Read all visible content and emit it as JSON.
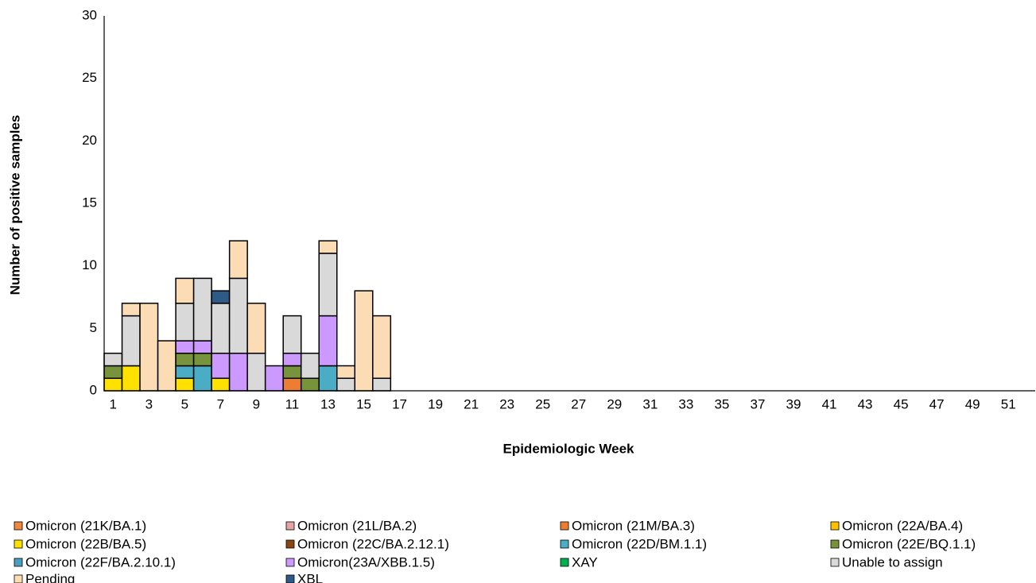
{
  "chart_data": {
    "type": "stacked-bar",
    "x_label": "Epidemiologic Week",
    "y_label": "Number of positive samples",
    "categories": [
      1,
      null,
      3,
      null,
      5,
      null,
      7,
      null,
      9,
      null,
      11,
      null,
      13,
      null,
      15,
      null,
      17,
      null,
      19,
      null,
      21,
      null,
      23,
      null,
      25,
      null,
      27,
      null,
      29,
      null,
      31,
      null,
      33,
      null,
      35,
      null,
      37,
      null,
      39,
      null,
      41,
      null,
      43,
      null,
      45,
      null,
      47,
      null,
      49,
      null,
      51,
      null
    ],
    "ylim": [
      0,
      30
    ],
    "yticks": [
      0,
      5,
      10,
      15,
      20,
      25,
      30
    ],
    "grid": false,
    "series": [
      {
        "name": "Omicron (21K/BA.1)",
        "color": "#f0883e",
        "values": [
          0,
          0,
          0,
          0,
          0,
          0,
          0,
          0,
          0,
          0,
          0,
          0,
          0,
          0,
          0,
          0,
          0,
          0,
          0,
          0,
          0,
          0,
          0,
          0,
          0,
          0,
          0,
          0,
          0,
          0,
          0,
          0,
          0,
          0,
          0,
          0,
          0,
          0,
          0,
          0,
          0,
          0,
          0,
          0,
          0,
          0,
          0,
          0,
          0,
          0,
          0,
          0
        ]
      },
      {
        "name": "Omicron (21L/BA.2)",
        "color": "#e6a3a3",
        "values": [
          0,
          0,
          0,
          0,
          0,
          0,
          0,
          0,
          0,
          0,
          0,
          0,
          0,
          0,
          0,
          0,
          0,
          0,
          0,
          0,
          0,
          0,
          0,
          0,
          0,
          0,
          0,
          0,
          0,
          0,
          0,
          0,
          0,
          0,
          0,
          0,
          0,
          0,
          0,
          0,
          0,
          0,
          0,
          0,
          0,
          0,
          0,
          0,
          0,
          0,
          0,
          0
        ]
      },
      {
        "name": "Omicron (21M/BA.3)",
        "color": "#ed7d31",
        "values": [
          0,
          0,
          0,
          0,
          0,
          0,
          0,
          0,
          0,
          0,
          1,
          0,
          0,
          0,
          0,
          0,
          0,
          0,
          0,
          0,
          0,
          0,
          0,
          0,
          0,
          0,
          0,
          0,
          0,
          0,
          0,
          0,
          0,
          0,
          0,
          0,
          0,
          0,
          0,
          0,
          0,
          0,
          0,
          0,
          0,
          0,
          0,
          0,
          0,
          0,
          0,
          0
        ]
      },
      {
        "name": "Omicron (22A/BA.4)",
        "color": "#ffc000",
        "values": [
          0,
          0,
          0,
          0,
          0,
          0,
          0,
          0,
          0,
          0,
          0,
          0,
          0,
          0,
          0,
          0,
          0,
          0,
          0,
          0,
          0,
          0,
          0,
          0,
          0,
          0,
          0,
          0,
          0,
          0,
          0,
          0,
          0,
          0,
          0,
          0,
          0,
          0,
          0,
          0,
          0,
          0,
          0,
          0,
          0,
          0,
          0,
          0,
          0,
          0,
          0,
          0
        ]
      },
      {
        "name": "Omicron (22B/BA.5)",
        "color": "#ffe100",
        "values": [
          1,
          2,
          0,
          0,
          1,
          0,
          1,
          0,
          0,
          0,
          0,
          0,
          0,
          0,
          0,
          0,
          0,
          0,
          0,
          0,
          0,
          0,
          0,
          0,
          0,
          0,
          0,
          0,
          0,
          0,
          0,
          0,
          0,
          0,
          0,
          0,
          0,
          0,
          0,
          0,
          0,
          0,
          0,
          0,
          0,
          0,
          0,
          0,
          0,
          0,
          0,
          0
        ]
      },
      {
        "name": "Omicron (22C/BA.2.12.1)",
        "color": "#8b4513",
        "values": [
          0,
          0,
          0,
          0,
          0,
          0,
          0,
          0,
          0,
          0,
          0,
          0,
          0,
          0,
          0,
          0,
          0,
          0,
          0,
          0,
          0,
          0,
          0,
          0,
          0,
          0,
          0,
          0,
          0,
          0,
          0,
          0,
          0,
          0,
          0,
          0,
          0,
          0,
          0,
          0,
          0,
          0,
          0,
          0,
          0,
          0,
          0,
          0,
          0,
          0,
          0,
          0
        ]
      },
      {
        "name": "Omicron (22D/BM.1.1)",
        "color": "#4bacc6",
        "values": [
          0,
          0,
          0,
          0,
          1,
          2,
          0,
          0,
          0,
          0,
          0,
          0,
          2,
          0,
          0,
          0,
          0,
          0,
          0,
          0,
          0,
          0,
          0,
          0,
          0,
          0,
          0,
          0,
          0,
          0,
          0,
          0,
          0,
          0,
          0,
          0,
          0,
          0,
          0,
          0,
          0,
          0,
          0,
          0,
          0,
          0,
          0,
          0,
          0,
          0,
          0,
          0
        ]
      },
      {
        "name": "Omicron (22E/BQ.1.1)",
        "color": "#77933c",
        "values": [
          1,
          0,
          0,
          0,
          1,
          1,
          0,
          0,
          0,
          0,
          1,
          1,
          0,
          0,
          0,
          0,
          0,
          0,
          0,
          0,
          0,
          0,
          0,
          0,
          0,
          0,
          0,
          0,
          0,
          0,
          0,
          0,
          0,
          0,
          0,
          0,
          0,
          0,
          0,
          0,
          0,
          0,
          0,
          0,
          0,
          0,
          0,
          0,
          0,
          0,
          0,
          0
        ]
      },
      {
        "name": "Omicron (22F/BA.2.10.1)",
        "color": "#4a9fc0",
        "values": [
          0,
          0,
          0,
          0,
          0,
          0,
          0,
          0,
          0,
          0,
          0,
          0,
          0,
          0,
          0,
          0,
          0,
          0,
          0,
          0,
          0,
          0,
          0,
          0,
          0,
          0,
          0,
          0,
          0,
          0,
          0,
          0,
          0,
          0,
          0,
          0,
          0,
          0,
          0,
          0,
          0,
          0,
          0,
          0,
          0,
          0,
          0,
          0,
          0,
          0,
          0,
          0
        ]
      },
      {
        "name": "Omicron(23A/XBB.1.5)",
        "color": "#cc99ff",
        "values": [
          0,
          0,
          0,
          0,
          1,
          1,
          2,
          3,
          0,
          2,
          1,
          0,
          4,
          0,
          0,
          0,
          0,
          0,
          0,
          0,
          0,
          0,
          0,
          0,
          0,
          0,
          0,
          0,
          0,
          0,
          0,
          0,
          0,
          0,
          0,
          0,
          0,
          0,
          0,
          0,
          0,
          0,
          0,
          0,
          0,
          0,
          0,
          0,
          0,
          0,
          0,
          0
        ]
      },
      {
        "name": "XAY",
        "color": "#00b050",
        "values": [
          0,
          0,
          0,
          0,
          0,
          0,
          0,
          0,
          0,
          0,
          0,
          0,
          0,
          0,
          0,
          0,
          0,
          0,
          0,
          0,
          0,
          0,
          0,
          0,
          0,
          0,
          0,
          0,
          0,
          0,
          0,
          0,
          0,
          0,
          0,
          0,
          0,
          0,
          0,
          0,
          0,
          0,
          0,
          0,
          0,
          0,
          0,
          0,
          0,
          0,
          0,
          0
        ]
      },
      {
        "name": "Unable to assign",
        "color": "#d9d9d9",
        "values": [
          1,
          4,
          0,
          0,
          3,
          5,
          4,
          6,
          3,
          0,
          3,
          2,
          5,
          1,
          0,
          1,
          0,
          0,
          0,
          0,
          0,
          0,
          0,
          0,
          0,
          0,
          0,
          0,
          0,
          0,
          0,
          0,
          0,
          0,
          0,
          0,
          0,
          0,
          0,
          0,
          0,
          0,
          0,
          0,
          0,
          0,
          0,
          0,
          0,
          0,
          0,
          0
        ]
      },
      {
        "name": "Pending",
        "color": "#fcdcb4",
        "values": [
          0,
          1,
          7,
          4,
          2,
          0,
          0,
          3,
          4,
          0,
          0,
          0,
          1,
          1,
          8,
          5,
          0,
          0,
          0,
          0,
          0,
          0,
          0,
          0,
          0,
          0,
          0,
          0,
          0,
          0,
          0,
          0,
          0,
          0,
          0,
          0,
          0,
          0,
          0,
          0,
          0,
          0,
          0,
          0,
          0,
          0,
          0,
          0,
          0,
          0,
          0,
          0
        ]
      },
      {
        "name": "XBL",
        "color": "#2e5a87",
        "values": [
          0,
          0,
          0,
          0,
          0,
          0,
          1,
          0,
          0,
          0,
          0,
          0,
          0,
          0,
          0,
          0,
          0,
          0,
          0,
          0,
          0,
          0,
          0,
          0,
          0,
          0,
          0,
          0,
          0,
          0,
          0,
          0,
          0,
          0,
          0,
          0,
          0,
          0,
          0,
          0,
          0,
          0,
          0,
          0,
          0,
          0,
          0,
          0,
          0,
          0,
          0,
          0
        ]
      }
    ]
  }
}
